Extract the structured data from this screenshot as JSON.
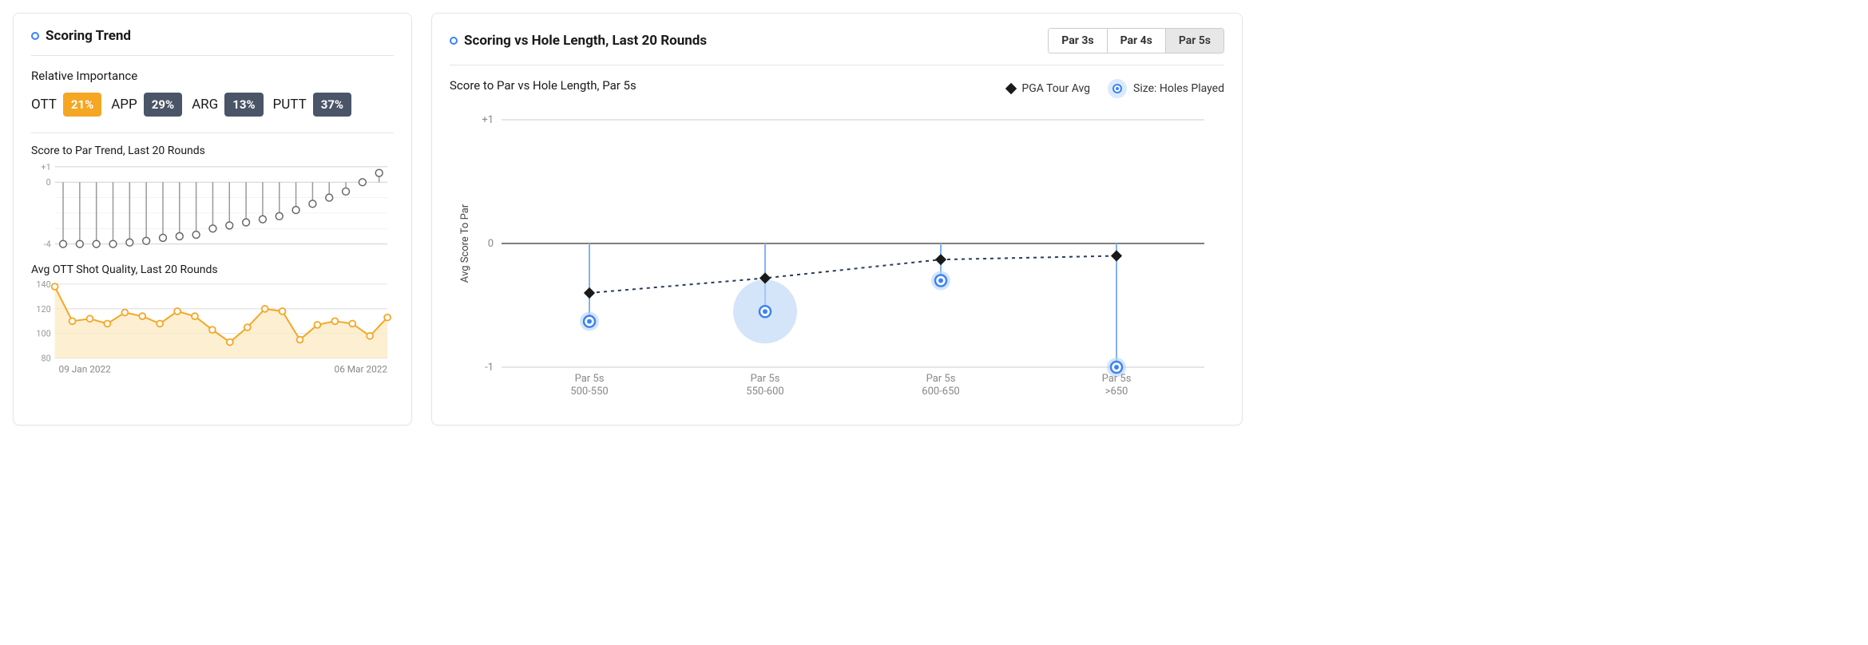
{
  "left": {
    "title": "Scoring Trend",
    "importance_label": "Relative Importance",
    "importance": [
      {
        "label": "OTT",
        "value": "21%",
        "highlight": true
      },
      {
        "label": "APP",
        "value": "29%",
        "highlight": false
      },
      {
        "label": "ARG",
        "value": "13%",
        "highlight": false
      },
      {
        "label": "PUTT",
        "value": "37%",
        "highlight": false
      }
    ],
    "trend_chart": {
      "title": "Score to Par Trend, Last 20 Rounds",
      "ylim": [
        -4,
        1
      ],
      "yticks": [
        -4,
        0,
        1
      ],
      "values": [
        -4,
        -4,
        -4,
        -4,
        -3.9,
        -3.8,
        -3.6,
        -3.5,
        -3.4,
        -3.0,
        -2.8,
        -2.6,
        -2.4,
        -2.2,
        -1.8,
        -1.4,
        -1.0,
        -0.6,
        0.0,
        0.6
      ],
      "stem_color": "#999999",
      "marker_stroke": "#666666",
      "marker_fill": "#ffffff",
      "grid_color": "#d0d0d0"
    },
    "ott_chart": {
      "title": "Avg OTT Shot Quality, Last 20 Rounds",
      "ylim": [
        80,
        140
      ],
      "yticks": [
        80,
        100,
        120,
        140
      ],
      "values": [
        138,
        110,
        112,
        108,
        117,
        114,
        108,
        118,
        114,
        103,
        93,
        105,
        120,
        118,
        95,
        107,
        110,
        108,
        98,
        113
      ],
      "line_color": "#f5a623",
      "fill_color": "#fce8bf",
      "marker_stroke": "#f5a623",
      "marker_fill": "#ffffff",
      "grid_color": "#d0d0d0",
      "x_start_label": "09 Jan 2022",
      "x_end_label": "06 Mar 2022"
    }
  },
  "right": {
    "title": "Scoring vs Hole Length, Last 20 Rounds",
    "tabs": [
      {
        "label": "Par 3s",
        "active": false
      },
      {
        "label": "Par 4s",
        "active": false
      },
      {
        "label": "Par 5s",
        "active": true
      }
    ],
    "subtitle": "Score to Par vs Hole Length, Par 5s",
    "legend": {
      "pga": "PGA Tour Avg",
      "size": "Size: Holes Played"
    },
    "chart": {
      "ytitle": "Avg Score To Par",
      "ylim": [
        -1,
        1
      ],
      "yticks": [
        -1,
        0,
        1
      ],
      "categories": [
        {
          "line1": "Par 5s",
          "line2": "500-550"
        },
        {
          "line1": "Par 5s",
          "line2": "550-600"
        },
        {
          "line1": "Par 5s",
          "line2": "600-650"
        },
        {
          "line1": "Par 5s",
          "line2": ">650"
        }
      ],
      "pga_values": [
        -0.4,
        -0.28,
        -0.13,
        -0.1
      ],
      "player_values": [
        -0.63,
        -0.55,
        -0.3,
        -1.0
      ],
      "player_sizes": [
        12,
        40,
        12,
        12
      ],
      "colors": {
        "pga_marker": "#1a1a1a",
        "pga_line": "#2a3b5a",
        "player_stem": "#7fb3f5",
        "player_outer": "#b8d4f5",
        "player_ring": "#3b82f6",
        "player_core": "#3b82f6",
        "zero_line": "#555555",
        "grid": "#cccccc",
        "background": "#ffffff"
      }
    }
  }
}
